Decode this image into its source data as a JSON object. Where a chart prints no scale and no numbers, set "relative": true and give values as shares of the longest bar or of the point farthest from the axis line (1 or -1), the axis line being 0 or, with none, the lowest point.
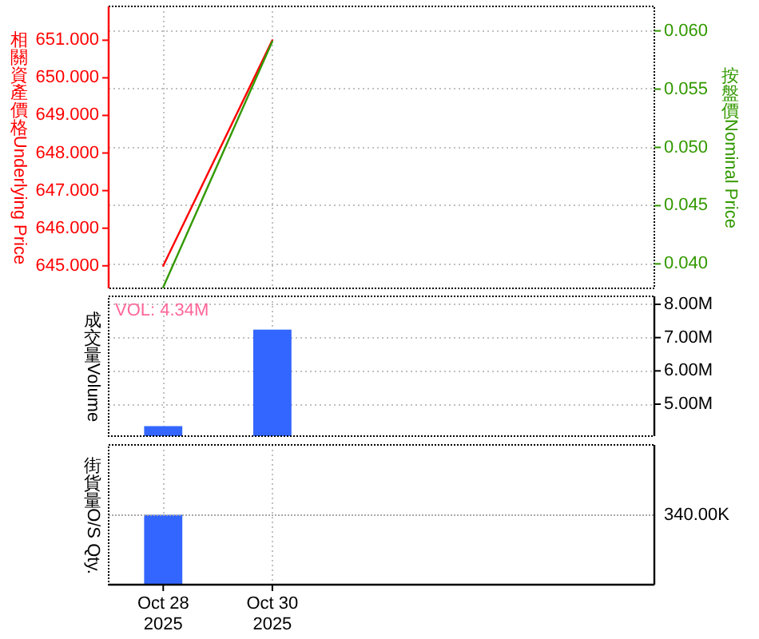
{
  "chart_data": [
    {
      "type": "line",
      "x": [
        "2025-10-28",
        "2025-10-30"
      ],
      "series": [
        {
          "color": "#ff0000",
          "values": [
            645.0,
            651.0
          ]
        },
        {
          "color": "#339900",
          "values": [
            0.038,
            0.0591
          ],
          "axis": "y2"
        }
      ],
      "ylabel": "相關資產價格 Underlying Price",
      "y2label": "按盤價Nominal Price",
      "xlim": [
        "2025-10-27",
        "2025-11-06"
      ],
      "xticks": [
        {
          "value": "2025-10-28",
          "label": null
        },
        {
          "value": "2025-10-30",
          "label": null
        }
      ],
      "ylim": [
        644.4,
        651.9
      ],
      "yticks": [
        {
          "value": 645,
          "label": "645.000"
        },
        {
          "value": 646,
          "label": "646.000"
        },
        {
          "value": 647,
          "label": "647.000"
        },
        {
          "value": 648,
          "label": "648.000"
        },
        {
          "value": 649,
          "label": "649.000"
        },
        {
          "value": 650,
          "label": "650.000"
        },
        {
          "value": 651,
          "label": "651.000"
        }
      ],
      "y2lim": [
        0.0379,
        0.0621
      ],
      "y2ticks": [
        {
          "value": 0.04,
          "label": "0.040"
        },
        {
          "value": 0.045,
          "label": "0.045"
        },
        {
          "value": 0.05,
          "label": "0.050"
        },
        {
          "value": 0.055,
          "label": "0.055"
        },
        {
          "value": 0.06,
          "label": "0.060"
        }
      ],
      "grid": true,
      "tick_labels": "y"
    },
    {
      "type": "bar",
      "x": [
        "2025-10-28",
        "2025-10-30"
      ],
      "values": [
        4340000,
        7240000
      ],
      "color": "#3366ff",
      "ylabel": "成交量Volume",
      "annotations": [
        "VOL: 4.34M"
      ],
      "xlim": [
        "2025-10-27",
        "2025-11-06"
      ],
      "xticks": [
        {
          "value": "2025-10-28",
          "label": null
        },
        {
          "value": "2025-10-30",
          "label": null
        }
      ],
      "ylim": [
        4040000,
        8240000
      ],
      "yticks": [
        {
          "value": 5000000,
          "label": "5.00M"
        },
        {
          "value": 6000000,
          "label": "6.00M"
        },
        {
          "value": 7000000,
          "label": "7.00M"
        },
        {
          "value": 8000000,
          "label": "8.00M"
        }
      ],
      "grid": true,
      "tick_labels": "y"
    },
    {
      "type": "bar",
      "x": [
        "2025-10-28"
      ],
      "values": [
        1
      ],
      "relative": true,
      "color": "#3366ff",
      "ylabel": "街貨量O/S Qty.",
      "xlim": [
        "2025-10-27",
        "2025-11-06"
      ],
      "xticks": [
        {
          "value": "2025-10-28",
          "label": "Oct 28\n2025"
        },
        {
          "value": "2025-10-30",
          "label": "Oct 30\n2025"
        }
      ],
      "ref_lines": [
        {
          "axis": "y",
          "value": 1,
          "label": "340.00K",
          "color": "#a8a8a8",
          "line_style": "dotted"
        }
      ],
      "grid": "x",
      "tick_labels": "x"
    }
  ]
}
